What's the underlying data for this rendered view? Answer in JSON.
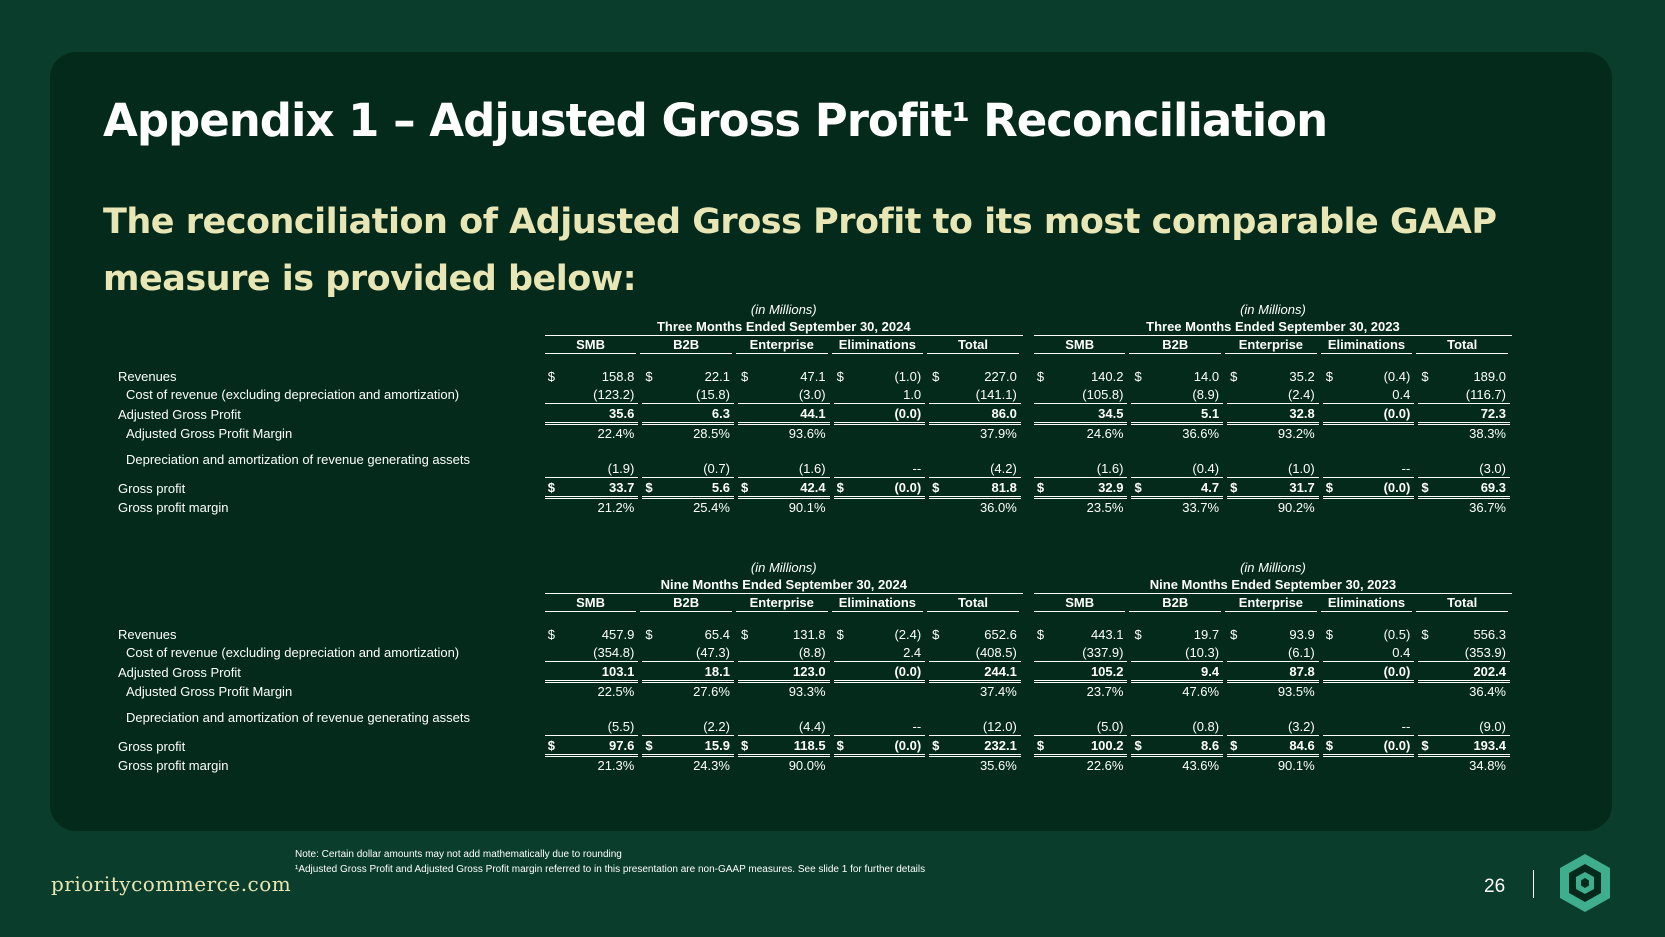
{
  "slide": {
    "title": "Appendix 1 – Adjusted Gross Profit",
    "title_sup": "1",
    "title_tail": " Reconciliation",
    "subtitle": "The reconciliation of Adjusted Gross Profit to its most comparable GAAP measure is provided below:",
    "page_number": "26",
    "brand": "prioritycommerce.com",
    "note_line1": "Note: Certain dollar amounts may not add mathematically due to rounding",
    "note_line2": "¹Adjusted Gross Profit and Adjusted Gross Profit margin referred to in this presentation are non-GAAP measures. See slide 1 for further details",
    "colors": {
      "background": "#0a3d2b",
      "panel": "#042a1c",
      "accent": "#e8e6b5",
      "logo_green": "#3fae8c"
    },
    "logo_icon": "hexagon-logo-icon"
  },
  "columns": [
    "SMB",
    "B2B",
    "Enterprise",
    "Eliminations",
    "Total"
  ],
  "units": "(in Millions)",
  "currency_symbol": "$",
  "blocks": [
    {
      "period_left": "Three Months Ended September 30, 2024",
      "period_right": "Three Months Ended September 30, 2023",
      "rows": [
        {
          "label": "Revenues",
          "indent": false,
          "bold": false,
          "dollar": true,
          "rule": "none",
          "values": [
            "158.8",
            "22.1",
            "47.1",
            "(1.0)",
            "227.0",
            "140.2",
            "14.0",
            "35.2",
            "(0.4)",
            "189.0"
          ]
        },
        {
          "label": "Cost of revenue (excluding depreciation and amortization)",
          "indent": true,
          "bold": false,
          "dollar": false,
          "rule": "single",
          "values": [
            "(123.2)",
            "(15.8)",
            "(3.0)",
            "1.0",
            "(141.1)",
            "(105.8)",
            "(8.9)",
            "(2.4)",
            "0.4",
            "(116.7)"
          ]
        },
        {
          "label": "Adjusted Gross Profit",
          "indent": false,
          "bold": true,
          "dollar": false,
          "rule": "double",
          "values": [
            "35.6",
            "6.3",
            "44.1",
            "(0.0)",
            "86.0",
            "34.5",
            "5.1",
            "32.8",
            "(0.0)",
            "72.3"
          ]
        },
        {
          "label": "Adjusted Gross Profit Margin",
          "indent": true,
          "bold": false,
          "dollar": false,
          "rule": "none",
          "values": [
            "22.4%",
            "28.5%",
            "93.6%",
            "",
            "37.9%",
            "24.6%",
            "36.6%",
            "93.2%",
            "",
            "38.3%"
          ]
        },
        {
          "label": "",
          "spacer": true,
          "values": []
        },
        {
          "label": "Depreciation and amortization of revenue generating assets",
          "indent": true,
          "bold": false,
          "dollar": false,
          "rule": "single",
          "tall": true,
          "values": [
            "(1.9)",
            "(0.7)",
            "(1.6)",
            "--",
            "(4.2)",
            "(1.6)",
            "(0.4)",
            "(1.0)",
            "--",
            "(3.0)"
          ]
        },
        {
          "label": "Gross profit",
          "indent": false,
          "bold": true,
          "dollar": true,
          "rule": "double",
          "values": [
            "33.7",
            "5.6",
            "42.4",
            "(0.0)",
            "81.8",
            "32.9",
            "4.7",
            "31.7",
            "(0.0)",
            "69.3"
          ]
        },
        {
          "label": "Gross profit margin",
          "indent": false,
          "bold": false,
          "dollar": false,
          "rule": "none",
          "values": [
            "21.2%",
            "25.4%",
            "90.1%",
            "",
            "36.0%",
            "23.5%",
            "33.7%",
            "90.2%",
            "",
            "36.7%"
          ]
        }
      ]
    },
    {
      "period_left": "Nine Months Ended September 30, 2024",
      "period_right": "Nine Months Ended September 30, 2023",
      "rows": [
        {
          "label": "Revenues",
          "indent": false,
          "bold": false,
          "dollar": true,
          "rule": "none",
          "values": [
            "457.9",
            "65.4",
            "131.8",
            "(2.4)",
            "652.6",
            "443.1",
            "19.7",
            "93.9",
            "(0.5)",
            "556.3"
          ]
        },
        {
          "label": "Cost of revenue (excluding depreciation and amortization)",
          "indent": true,
          "bold": false,
          "dollar": false,
          "rule": "single",
          "values": [
            "(354.8)",
            "(47.3)",
            "(8.8)",
            "2.4",
            "(408.5)",
            "(337.9)",
            "(10.3)",
            "(6.1)",
            "0.4",
            "(353.9)"
          ]
        },
        {
          "label": "Adjusted Gross Profit",
          "indent": false,
          "bold": true,
          "dollar": false,
          "rule": "double",
          "values": [
            "103.1",
            "18.1",
            "123.0",
            "(0.0)",
            "244.1",
            "105.2",
            "9.4",
            "87.8",
            "(0.0)",
            "202.4"
          ]
        },
        {
          "label": "Adjusted Gross Profit Margin",
          "indent": true,
          "bold": false,
          "dollar": false,
          "rule": "none",
          "values": [
            "22.5%",
            "27.6%",
            "93.3%",
            "",
            "37.4%",
            "23.7%",
            "47.6%",
            "93.5%",
            "",
            "36.4%"
          ]
        },
        {
          "label": "",
          "spacer": true,
          "values": []
        },
        {
          "label": "Depreciation and amortization of revenue generating assets",
          "indent": true,
          "bold": false,
          "dollar": false,
          "rule": "single",
          "tall": true,
          "values": [
            "(5.5)",
            "(2.2)",
            "(4.4)",
            "--",
            "(12.0)",
            "(5.0)",
            "(0.8)",
            "(3.2)",
            "--",
            "(9.0)"
          ]
        },
        {
          "label": "Gross profit",
          "indent": false,
          "bold": true,
          "dollar": true,
          "rule": "double",
          "values": [
            "97.6",
            "15.9",
            "118.5",
            "(0.0)",
            "232.1",
            "100.2",
            "8.6",
            "84.6",
            "(0.0)",
            "193.4"
          ]
        },
        {
          "label": "Gross profit margin",
          "indent": false,
          "bold": false,
          "dollar": false,
          "rule": "none",
          "values": [
            "21.3%",
            "24.3%",
            "90.0%",
            "",
            "35.6%",
            "22.6%",
            "43.6%",
            "90.1%",
            "",
            "34.8%"
          ]
        }
      ]
    }
  ]
}
